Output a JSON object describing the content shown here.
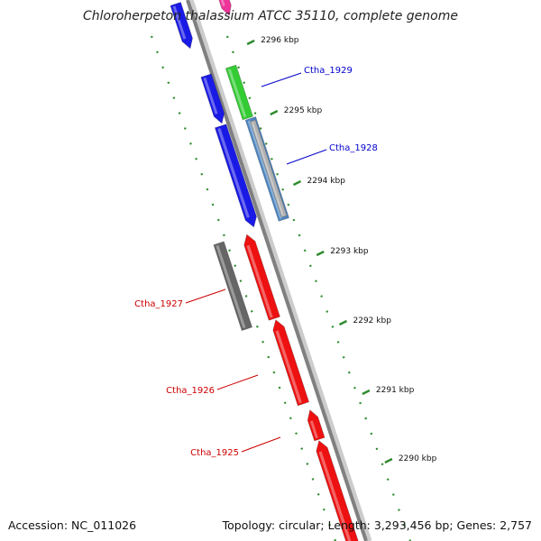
{
  "title": "Chloroherpeton thalassium ATCC 35110, complete genome",
  "footer": {
    "accession": "Accession: NC_011026",
    "summary": "Topology: circular; Length: 3,293,456 bp; Genes: 2,757"
  },
  "colors": {
    "backbone": "#8a8a8a",
    "tick": "#2e8b2e",
    "forward_label": "#0000cc",
    "reverse_label": "#cc0000"
  },
  "ticks": [
    "2296 kbp",
    "2295 kbp",
    "2294 kbp",
    "2293 kbp",
    "2292 kbp",
    "2291 kbp",
    "2290 kbp"
  ],
  "genes": {
    "labeled": [
      {
        "name": "Ctha_1929",
        "color": "#0000cc"
      },
      {
        "name": "Ctha_1928",
        "color": "#0000cc"
      },
      {
        "name": "Ctha_1927",
        "color": "#cc0000"
      },
      {
        "name": "Ctha_1926",
        "color": "#cc0000"
      },
      {
        "name": "Ctha_1925",
        "color": "#cc0000"
      }
    ],
    "feature_colors": {
      "blue": "#1a1ae6",
      "green": "#33cc33",
      "steel": "#4d86c2",
      "silver": "#b0b0b0",
      "pink": "#ee3399",
      "gray": "#666666",
      "red": "#ee1111"
    }
  }
}
